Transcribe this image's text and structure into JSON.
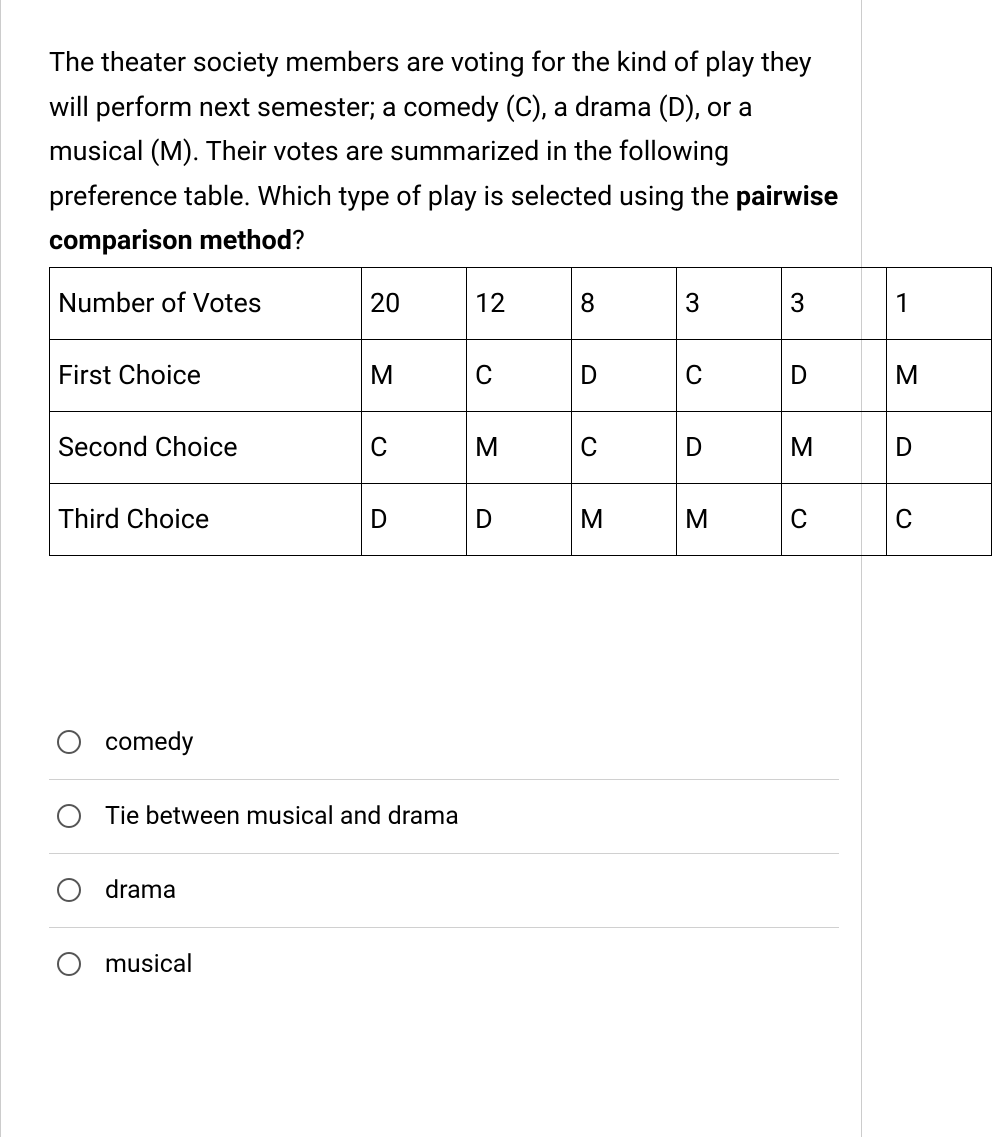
{
  "question": {
    "prefix": "The theater society members are voting for the kind of play they will perform next semester; a comedy (C), a drama (D), or a musical (M). Their votes are summarized in the following preference table. Which type of play is selected using the ",
    "bold": "pairwise comparison method",
    "suffix": "?"
  },
  "table": {
    "rows": [
      {
        "label": "Number of Votes",
        "cells": [
          "20",
          "12",
          "8",
          "3",
          "3",
          "1"
        ]
      },
      {
        "label": "First Choice",
        "cells": [
          "M",
          "C",
          "D",
          "C",
          "D",
          "M"
        ]
      },
      {
        "label": "Second Choice",
        "cells": [
          "C",
          "M",
          "C",
          "D",
          "M",
          "D"
        ]
      },
      {
        "label": "Third Choice",
        "cells": [
          "D",
          "D",
          "M",
          "M",
          "C",
          "C"
        ]
      }
    ]
  },
  "options": [
    "comedy",
    "Tie between musical and drama",
    "drama",
    "musical"
  ]
}
